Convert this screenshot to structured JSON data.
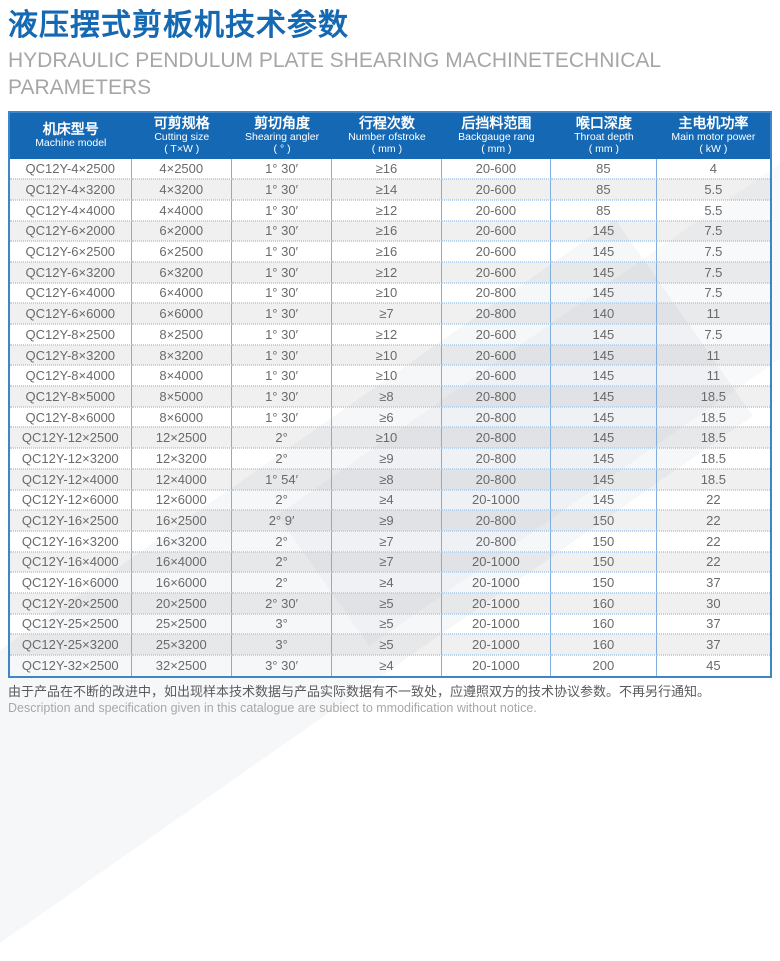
{
  "header": {
    "title_cn": "液压摆式剪板机技术参数",
    "title_en_line1": "HYDRAULIC PENDULUM PLATE SHEARING MACHINETECHNICAL",
    "title_en_line2": "PARAMETERS"
  },
  "colors": {
    "title_blue": "#1568b2",
    "header_bg": "#1568b3",
    "outer_border": "#3f86c9",
    "column_line": "#82aedd",
    "dotted_line": "#b9d3ec",
    "alt_row_bg": "#f0f0f0",
    "body_text": "#6a6a6a",
    "subtitle_gray": "#a6a6a6"
  },
  "table": {
    "columns": [
      {
        "cn": "机床型号",
        "en": "Machine model",
        "unit": ""
      },
      {
        "cn": "可剪规格",
        "en": "Cutting size",
        "unit": "( T×W )"
      },
      {
        "cn": "剪切角度",
        "en": "Shearing angler",
        "unit": "( °  )"
      },
      {
        "cn": "行程次数",
        "en": "Number ofstroke",
        "unit": "( mm )"
      },
      {
        "cn": "后挡料范围",
        "en": "Backgauge rang",
        "unit": "( mm )"
      },
      {
        "cn": "喉口深度",
        "en": "Throat depth",
        "unit": "( mm )"
      },
      {
        "cn": "主电机功率",
        "en": "Main motor power",
        "unit": "( kW )"
      }
    ],
    "rows": [
      [
        "QC12Y-4×2500",
        "4×2500",
        "1° 30′",
        "≥16",
        "20-600",
        "85",
        "4"
      ],
      [
        "QC12Y-4×3200",
        "4×3200",
        "1° 30′",
        "≥14",
        "20-600",
        "85",
        "5.5"
      ],
      [
        "QC12Y-4×4000",
        "4×4000",
        "1° 30′",
        "≥12",
        "20-600",
        "85",
        "5.5"
      ],
      [
        "QC12Y-6×2000",
        "6×2000",
        "1° 30′",
        "≥16",
        "20-600",
        "145",
        "7.5"
      ],
      [
        "QC12Y-6×2500",
        "6×2500",
        "1° 30′",
        "≥16",
        "20-600",
        "145",
        "7.5"
      ],
      [
        "QC12Y-6×3200",
        "6×3200",
        "1° 30′",
        "≥12",
        "20-600",
        "145",
        "7.5"
      ],
      [
        "QC12Y-6×4000",
        "6×4000",
        "1° 30′",
        "≥10",
        "20-800",
        "145",
        "7.5"
      ],
      [
        "QC12Y-6×6000",
        "6×6000",
        "1° 30′",
        "≥7",
        "20-800",
        "140",
        "11"
      ],
      [
        "QC12Y-8×2500",
        "8×2500",
        "1° 30′",
        "≥12",
        "20-600",
        "145",
        "7.5"
      ],
      [
        "QC12Y-8×3200",
        "8×3200",
        "1° 30′",
        "≥10",
        "20-600",
        "145",
        "11"
      ],
      [
        "QC12Y-8×4000",
        "8×4000",
        "1° 30′",
        "≥10",
        "20-600",
        "145",
        "11"
      ],
      [
        "QC12Y-8×5000",
        "8×5000",
        "1° 30′",
        "≥8",
        "20-800",
        "145",
        "18.5"
      ],
      [
        "QC12Y-8×6000",
        "8×6000",
        "1° 30′",
        "≥6",
        "20-800",
        "145",
        "18.5"
      ],
      [
        "QC12Y-12×2500",
        "12×2500",
        "2°",
        "≥10",
        "20-800",
        "145",
        "18.5"
      ],
      [
        "QC12Y-12×3200",
        "12×3200",
        "2°",
        "≥9",
        "20-800",
        "145",
        "18.5"
      ],
      [
        "QC12Y-12×4000",
        "12×4000",
        "1° 54′",
        "≥8",
        "20-800",
        "145",
        "18.5"
      ],
      [
        "QC12Y-12×6000",
        "12×6000",
        "2°",
        "≥4",
        "20-1000",
        "145",
        "22"
      ],
      [
        "QC12Y-16×2500",
        "16×2500",
        "2° 9′",
        "≥9",
        "20-800",
        "150",
        "22"
      ],
      [
        "QC12Y-16×3200",
        "16×3200",
        "2°",
        "≥7",
        "20-800",
        "150",
        "22"
      ],
      [
        "QC12Y-16×4000",
        "16×4000",
        "2°",
        "≥7",
        "20-1000",
        "150",
        "22"
      ],
      [
        "QC12Y-16×6000",
        "16×6000",
        "2°",
        "≥4",
        "20-1000",
        "150",
        "37"
      ],
      [
        "QC12Y-20×2500",
        "20×2500",
        "2° 30′",
        "≥5",
        "20-1000",
        "160",
        "30"
      ],
      [
        "QC12Y-25×2500",
        "25×2500",
        "3°",
        "≥5",
        "20-1000",
        "160",
        "37"
      ],
      [
        "QC12Y-25×3200",
        "25×3200",
        "3°",
        "≥5",
        "20-1000",
        "160",
        "37"
      ],
      [
        "QC12Y-32×2500",
        "32×2500",
        "3° 30′",
        "≥4",
        "20-1000",
        "200",
        "45"
      ]
    ]
  },
  "footer": {
    "cn": "由于产品在不断的改进中，如出现样本技术数据与产品实际数据有不一致处，应遵照双方的技术协议参数。不再另行通知。",
    "en": "Description and specification given in this catalogue are subiect to mmodification without notice."
  }
}
